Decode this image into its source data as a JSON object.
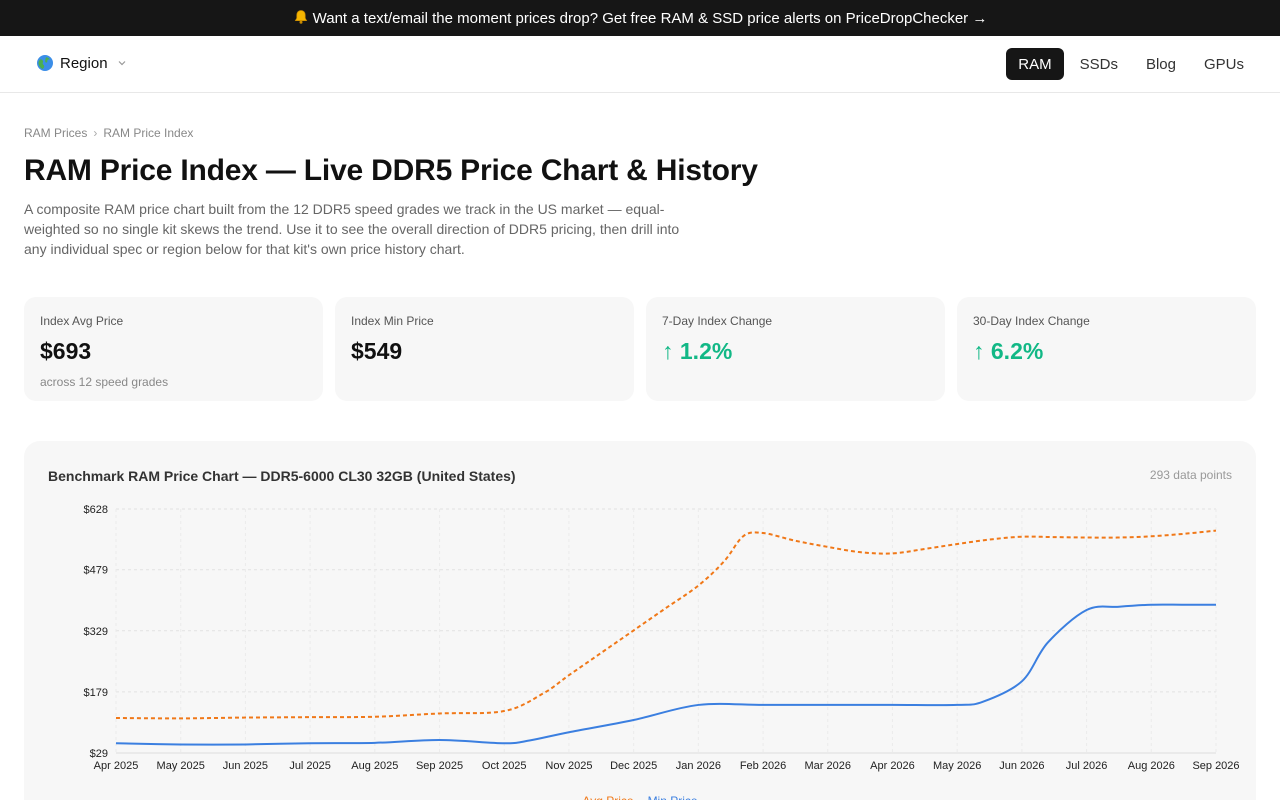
{
  "promo": {
    "text": "Want a text/email the moment prices drop? Get free RAM & SSD price alerts on PriceDropChecker →",
    "icon": "bell-icon"
  },
  "nav": {
    "region_label": "Region",
    "region_icon": "globe-icon",
    "links": [
      {
        "label": "RAM",
        "active": true
      },
      {
        "label": "SSDs",
        "active": false
      },
      {
        "label": "Blog",
        "active": false
      },
      {
        "label": "GPUs",
        "active": false
      }
    ]
  },
  "breadcrumb": {
    "items": [
      "RAM Prices",
      "RAM Price Index"
    ],
    "separator": "›"
  },
  "page": {
    "title": "RAM Price Index — Live DDR5 Price Chart & History",
    "description": "A composite RAM price chart built from the 12 DDR5 speed grades we track in the US market — equal-weighted so no single kit skews the trend. Use it to see the overall direction of DDR5 pricing, then drill into any individual spec or region below for that kit's own price history chart."
  },
  "stats": [
    {
      "label": "Index Avg Price",
      "value": "$693",
      "sub": "across 12 speed grades",
      "trend": "none"
    },
    {
      "label": "Index Min Price",
      "value": "$549",
      "sub": "",
      "trend": "none"
    },
    {
      "label": "7-Day Index Change",
      "value": "↑ 1.2%",
      "sub": "",
      "trend": "up"
    },
    {
      "label": "30-Day Index Change",
      "value": "↑ 6.2%",
      "sub": "",
      "trend": "up"
    }
  ],
  "colors": {
    "up": "#12b886",
    "avg_series": "#f07818",
    "min_series": "#3b7fe0",
    "dark": "#161616"
  },
  "chart_card": {
    "title": "Benchmark RAM Price Chart — DDR5-6000 CL30 32GB (United States)",
    "count": "293 data points"
  },
  "chart_data": {
    "type": "line",
    "title": "Benchmark RAM Price Chart — DDR5-6000 CL30 32GB (United States)",
    "x_categories": [
      "Apr 2025",
      "May 2025",
      "Jun 2025",
      "Jul 2025",
      "Aug 2025",
      "Sep 2025",
      "Oct 2025",
      "Nov 2025",
      "Dec 2025",
      "Jan 2026",
      "Feb 2026",
      "Mar 2026",
      "Apr 2026",
      "May 2026",
      "Jun 2026",
      "Jul 2026",
      "Aug 2026",
      "Sep 2026"
    ],
    "y_ticks": [
      "$29",
      "$179",
      "$329",
      "$479",
      "$628"
    ],
    "ylim": [
      29,
      628
    ],
    "grid": true,
    "legend_position": "bottom",
    "series": [
      {
        "name": "Avg Price",
        "style": "dashed",
        "color": "#f07818",
        "points": [
          [
            0,
            115
          ],
          [
            1,
            114
          ],
          [
            2,
            116
          ],
          [
            3,
            117
          ],
          [
            4,
            118
          ],
          [
            5,
            126
          ],
          [
            6,
            132
          ],
          [
            6.6,
            175
          ],
          [
            7,
            220
          ],
          [
            7.5,
            275
          ],
          [
            8,
            330
          ],
          [
            8.5,
            385
          ],
          [
            9,
            440
          ],
          [
            9.4,
            500
          ],
          [
            9.7,
            562
          ],
          [
            10,
            569
          ],
          [
            10.5,
            550
          ],
          [
            11,
            535
          ],
          [
            11.5,
            522
          ],
          [
            12,
            519
          ],
          [
            12.5,
            530
          ],
          [
            13,
            542
          ],
          [
            13.5,
            553
          ],
          [
            14,
            560
          ],
          [
            14.5,
            559
          ],
          [
            15,
            558
          ],
          [
            15.5,
            558
          ],
          [
            16,
            561
          ],
          [
            16.5,
            567
          ],
          [
            17,
            575
          ]
        ]
      },
      {
        "name": "Min Price",
        "style": "solid",
        "color": "#3b7fe0",
        "points": [
          [
            0,
            53
          ],
          [
            1,
            50
          ],
          [
            2,
            50
          ],
          [
            3,
            53
          ],
          [
            4,
            54
          ],
          [
            5,
            61
          ],
          [
            6,
            53
          ],
          [
            6.4,
            60
          ],
          [
            7,
            80
          ],
          [
            8,
            110
          ],
          [
            9,
            147
          ],
          [
            10,
            147
          ],
          [
            11,
            147
          ],
          [
            12,
            147
          ],
          [
            13,
            147
          ],
          [
            13.4,
            155
          ],
          [
            14,
            205
          ],
          [
            14.4,
            300
          ],
          [
            15,
            380
          ],
          [
            15.5,
            388
          ],
          [
            16,
            393
          ],
          [
            16.5,
            393
          ],
          [
            17,
            393
          ]
        ]
      }
    ]
  }
}
